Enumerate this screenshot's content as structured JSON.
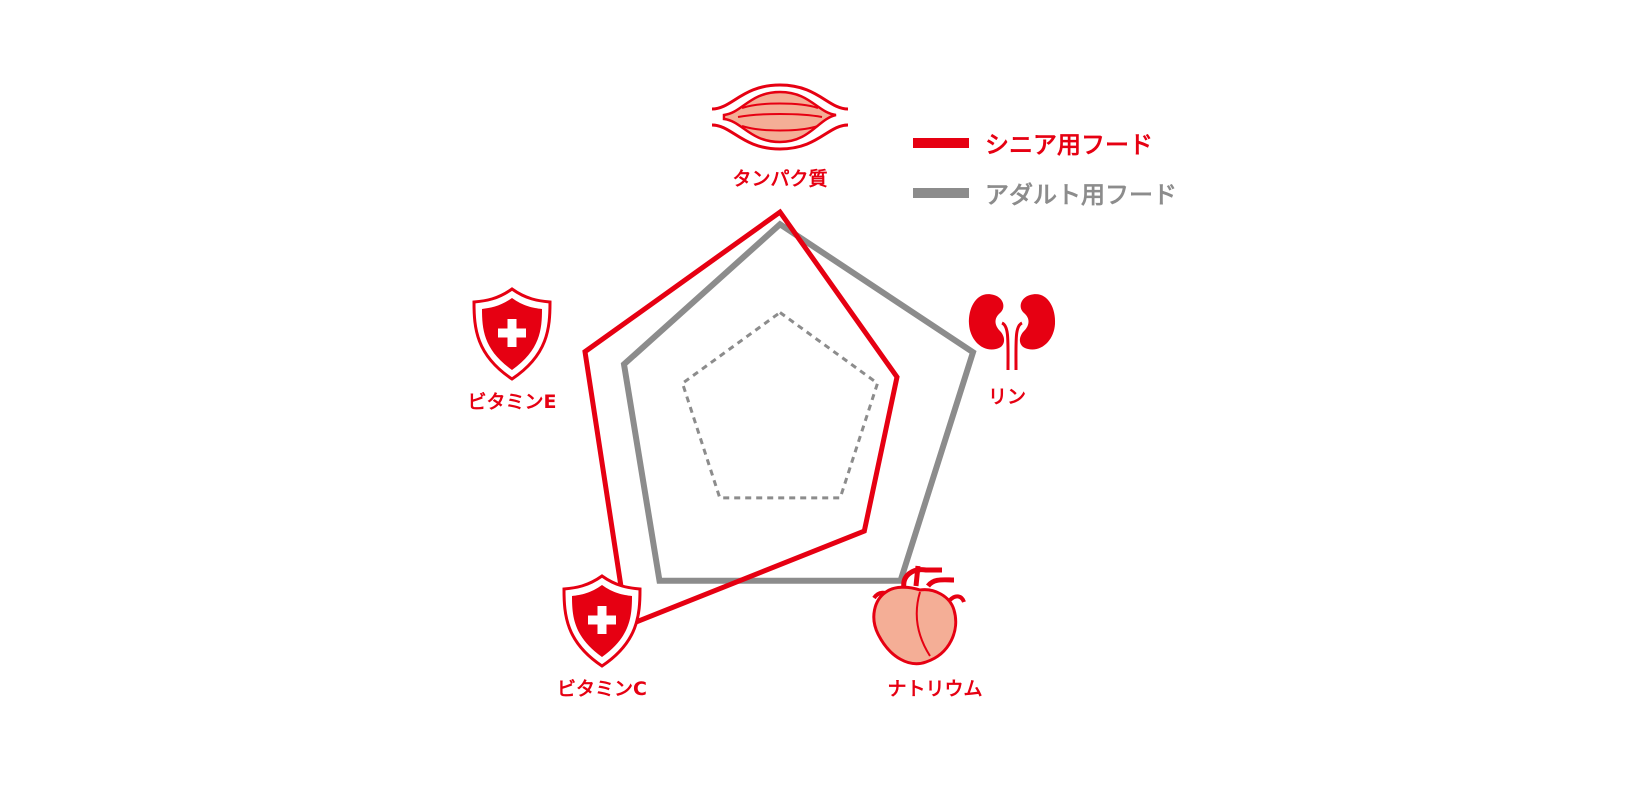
{
  "colors": {
    "senior": "#e60012",
    "adult": "#8c8c8c",
    "reference": "#8c8c8c",
    "icon_fill": "#f4ae96",
    "icon_stroke": "#e60012",
    "background": "#ffffff"
  },
  "legend": {
    "position": "top-right",
    "items": [
      {
        "label": "シニア用フード",
        "color": "#e60012"
      },
      {
        "label": "アダルト用フード",
        "color": "#8c8c8c"
      }
    ]
  },
  "axes": [
    {
      "label": "タンパク質",
      "icon": "muscle-icon"
    },
    {
      "label": "リン",
      "icon": "kidney-icon"
    },
    {
      "label": "ナトリウム",
      "icon": "heart-icon"
    },
    {
      "label": "ビタミンC",
      "icon": "shield-cross-icon"
    },
    {
      "label": "ビタミンE",
      "icon": "shield-cross-icon"
    }
  ],
  "chart_data": {
    "type": "radar",
    "categories": [
      "タンパク質",
      "リン",
      "ナトリウム",
      "ビタミンC",
      "ビタミンE"
    ],
    "series": [
      {
        "name": "シニア用フード",
        "values": [
          0.99,
          0.6,
          0.7,
          1.27,
          1.0
        ],
        "color": "#e60012"
      },
      {
        "name": "アダルト用フード",
        "values": [
          0.93,
          0.99,
          1.0,
          1.0,
          0.8
        ],
        "color": "#8c8c8c"
      }
    ],
    "reference": {
      "value": 0.5,
      "style": "dashed",
      "color": "#8c8c8c"
    },
    "range": [
      0,
      1.3
    ],
    "grid": false
  }
}
